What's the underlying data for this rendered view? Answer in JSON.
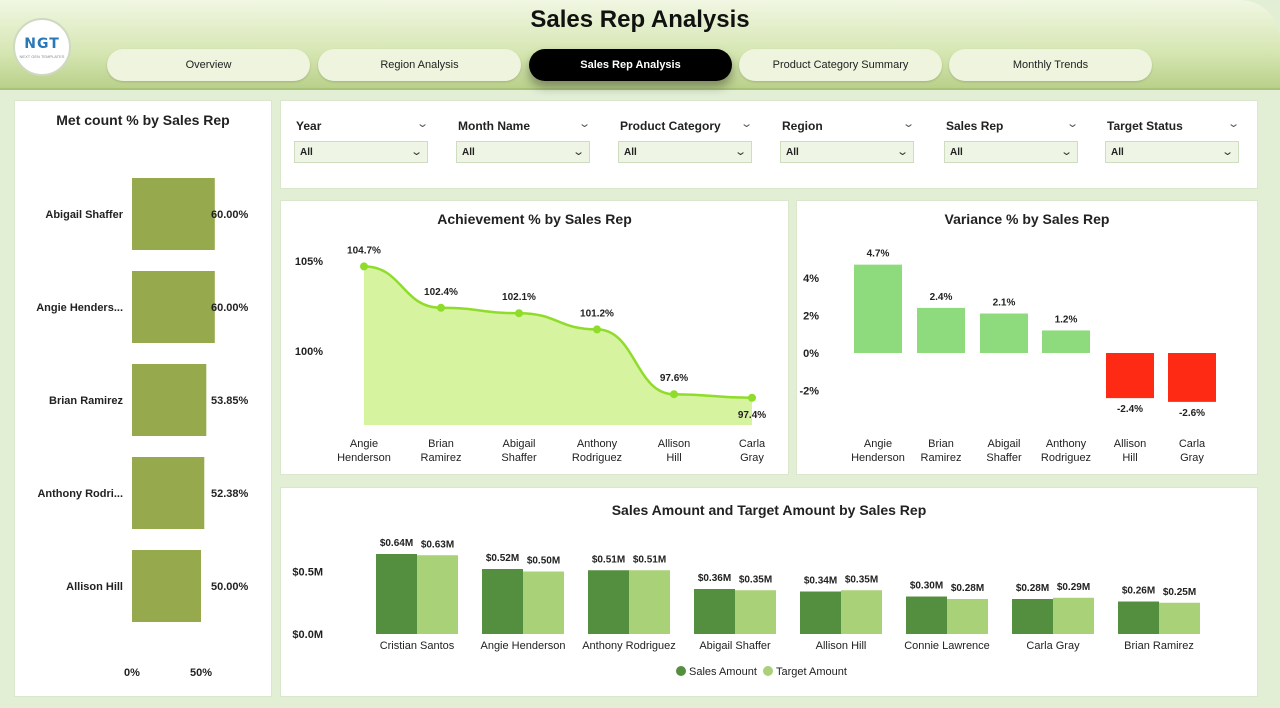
{
  "header": {
    "title": "Sales Rep Analysis",
    "logo_text": "NGT",
    "logo_subtext": "NEXT GEN TEMPLATES"
  },
  "tabs": [
    {
      "label": "Overview",
      "active": false
    },
    {
      "label": "Region Analysis",
      "active": false
    },
    {
      "label": "Sales Rep Analysis",
      "active": true
    },
    {
      "label": "Product Category Summary",
      "active": false
    },
    {
      "label": "Monthly Trends",
      "active": false
    }
  ],
  "filters": [
    {
      "label": "Year",
      "value": "All"
    },
    {
      "label": "Month Name",
      "value": "All"
    },
    {
      "label": "Product Category",
      "value": "All"
    },
    {
      "label": "Region",
      "value": "All"
    },
    {
      "label": "Sales Rep",
      "value": "All"
    },
    {
      "label": "Target Status",
      "value": "All"
    }
  ],
  "chart_data": [
    {
      "id": "met_count",
      "type": "bar",
      "orientation": "horizontal",
      "title": "Met count % by Sales Rep",
      "categories": [
        "Abigail Shaffer",
        "Angie Henders...",
        "Brian Ramirez",
        "Anthony Rodri...",
        "Allison Hill"
      ],
      "values": [
        60.0,
        60.0,
        53.85,
        52.38,
        50.0
      ],
      "data_labels": [
        "60.00%",
        "60.00%",
        "53.85%",
        "52.38%",
        "50.00%"
      ],
      "x_ticks": [
        "0%",
        "50%"
      ],
      "xlim": [
        0,
        70
      ],
      "color": "#97a94d"
    },
    {
      "id": "achievement",
      "type": "area",
      "title": "Achievement % by Sales Rep",
      "categories": [
        "Angie Henderson",
        "Brian Ramirez",
        "Abigail Shaffer",
        "Anthony Rodriguez",
        "Allison Hill",
        "Carla Gray"
      ],
      "values": [
        104.7,
        102.4,
        102.1,
        101.2,
        97.6,
        97.4
      ],
      "data_labels": [
        "104.7%",
        "102.4%",
        "102.1%",
        "101.2%",
        "97.6%",
        "97.4%"
      ],
      "y_ticks": [
        {
          "value": 105,
          "label": "105%"
        },
        {
          "value": 100,
          "label": "100%"
        }
      ],
      "ylim": [
        96.0,
        105.0
      ],
      "line_color": "#8fdc2a",
      "fill_color": "#d6f3a0"
    },
    {
      "id": "variance",
      "type": "bar",
      "title": "Variance % by Sales Rep",
      "categories": [
        "Angie Henderson",
        "Brian Ramirez",
        "Abigail Shaffer",
        "Anthony Rodriguez",
        "Allison Hill",
        "Carla Gray"
      ],
      "values": [
        4.7,
        2.4,
        2.1,
        1.2,
        -2.4,
        -2.6
      ],
      "data_labels": [
        "4.7%",
        "2.4%",
        "2.1%",
        "1.2%",
        "-2.4%",
        "-2.6%"
      ],
      "y_ticks": [
        {
          "value": 4,
          "label": "4%"
        },
        {
          "value": 2,
          "label": "2%"
        },
        {
          "value": 0,
          "label": "0%"
        },
        {
          "value": -2,
          "label": "-2%"
        }
      ],
      "ylim": [
        -3.5,
        5.8
      ],
      "positive_color": "#8ddb7d",
      "negative_color": "#ff2a14"
    },
    {
      "id": "sales_target",
      "type": "bar",
      "title": "Sales Amount and Target Amount by Sales Rep",
      "categories": [
        "Cristian Santos",
        "Angie Henderson",
        "Anthony Rodriguez",
        "Abigail Shaffer",
        "Allison Hill",
        "Connie Lawrence",
        "Carla Gray",
        "Brian Ramirez"
      ],
      "series": [
        {
          "name": "Sales Amount",
          "color": "#548f3f",
          "values": [
            0.64,
            0.52,
            0.51,
            0.36,
            0.34,
            0.3,
            0.28,
            0.26
          ],
          "data_labels": [
            "$0.64M",
            "$0.52M",
            "$0.51M",
            "$0.36M",
            "$0.34M",
            "$0.30M",
            "$0.28M",
            "$0.26M"
          ]
        },
        {
          "name": "Target Amount",
          "color": "#a9d177",
          "values": [
            0.63,
            0.5,
            0.51,
            0.35,
            0.35,
            0.28,
            0.29,
            0.25
          ],
          "data_labels": [
            "$0.63M",
            "$0.50M",
            "$0.51M",
            "$0.35M",
            "$0.35M",
            "$0.28M",
            "$0.29M",
            "$0.25M"
          ]
        }
      ],
      "y_ticks": [
        {
          "value": 0.5,
          "label": "$0.5M"
        },
        {
          "value": 0.0,
          "label": "$0.0M"
        }
      ],
      "ylim": [
        0,
        0.8
      ],
      "legend_position": "bottom"
    }
  ]
}
